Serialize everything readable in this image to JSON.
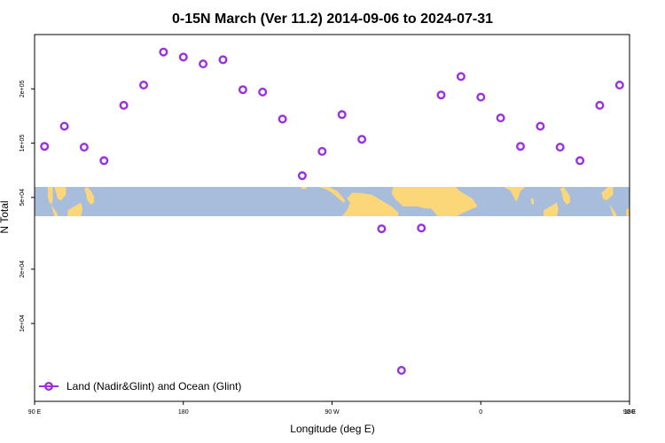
{
  "chart_data": {
    "type": "scatter",
    "title": "0-15N March (Ver 11.2)   2014-09-06 to 2024-07-31",
    "xlabel": "Longitude (deg E)",
    "ylabel": "N Total",
    "xlim": [
      90,
      450
    ],
    "y_scale": "log",
    "ylim": [
      3700,
      400000
    ],
    "x_tick_labels": [
      "90 E",
      "180",
      "90 W",
      "0",
      "90 E",
      "180"
    ],
    "y_tick_labels": [
      "1e+04",
      "2e+04",
      "5e+04",
      "1e+05",
      "2e+05"
    ],
    "legend_position": "bottom-left",
    "background": "world map band (land and ocean)",
    "series": [
      {
        "name": "Land (Nadir&Glint) and Ocean (Glint)",
        "color": "#9b30e0",
        "marker": "open-circle",
        "points": [
          {
            "x": 96,
            "y": 96000
          },
          {
            "x": 108,
            "y": 124000
          },
          {
            "x": 120,
            "y": 95000
          },
          {
            "x": 132,
            "y": 80000
          },
          {
            "x": 144,
            "y": 162000
          },
          {
            "x": 156,
            "y": 210000
          },
          {
            "x": 168,
            "y": 320000
          },
          {
            "x": 180,
            "y": 300000
          },
          {
            "x": 192,
            "y": 275000
          },
          {
            "x": 204,
            "y": 290000
          },
          {
            "x": 216,
            "y": 198000
          },
          {
            "x": 228,
            "y": 192000
          },
          {
            "x": 240,
            "y": 136000
          },
          {
            "x": 252,
            "y": 66000
          },
          {
            "x": 264,
            "y": 90000
          },
          {
            "x": 276,
            "y": 144000
          },
          {
            "x": 288,
            "y": 105000
          },
          {
            "x": 300,
            "y": 33500
          },
          {
            "x": 312,
            "y": 5500
          },
          {
            "x": 324,
            "y": 33800
          },
          {
            "x": 336,
            "y": 185000
          },
          {
            "x": 348,
            "y": 234000
          },
          {
            "x": 360,
            "y": 180000
          },
          {
            "x": 372,
            "y": 138000
          },
          {
            "x": 384,
            "y": 96000
          },
          {
            "x": 396,
            "y": 124000
          },
          {
            "x": 408,
            "y": 95000
          },
          {
            "x": 420,
            "y": 80000
          },
          {
            "x": 432,
            "y": 162000
          },
          {
            "x": 444,
            "y": 210000
          }
        ]
      }
    ]
  },
  "colors": {
    "ocean": "#a8bcdc",
    "land": "#fcd77a",
    "marker": "#9b30e0"
  }
}
